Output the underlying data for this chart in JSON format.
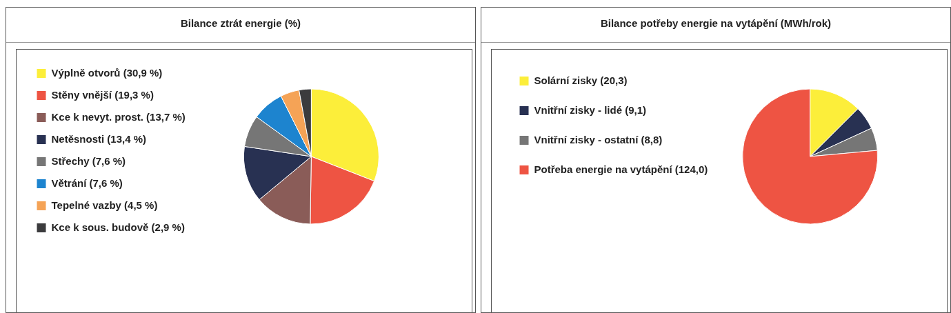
{
  "chart_data": [
    {
      "type": "pie",
      "title": "Bilance ztrát energie (%)",
      "legend": "left",
      "categories": [
        "Výplně otvorů (30,9 %)",
        "Stěny vnější (19,3 %)",
        "Kce k nevyt. prost. (13,7 %)",
        "Netěsnosti (13,4 %)",
        "Střechy (7,6 %)",
        "Větrání (7,6 %)",
        "Tepelné vazby (4,5 %)",
        "Kce k sous. budově (2,9 %)"
      ],
      "values": [
        30.9,
        19.3,
        13.7,
        13.4,
        7.6,
        7.6,
        4.5,
        2.9
      ],
      "colors": [
        "#fcee3a",
        "#ee5443",
        "#8a5c58",
        "#283152",
        "#767676",
        "#1d84cf",
        "#f5a356",
        "#3b3b3d"
      ]
    },
    {
      "type": "pie",
      "title": "Bilance potřeby energie na vytápění (MWh/rok)",
      "legend": "left",
      "categories": [
        "Solární zisky (20,3)",
        "Vnitřní zisky - lidé (9,1)",
        "Vnitřní zisky - ostatní (8,8)",
        "Potřeba energie na vytápění (124,0)"
      ],
      "values": [
        20.3,
        9.1,
        8.8,
        124.0
      ],
      "colors": [
        "#fcee3a",
        "#283152",
        "#767676",
        "#ee5443"
      ]
    }
  ]
}
